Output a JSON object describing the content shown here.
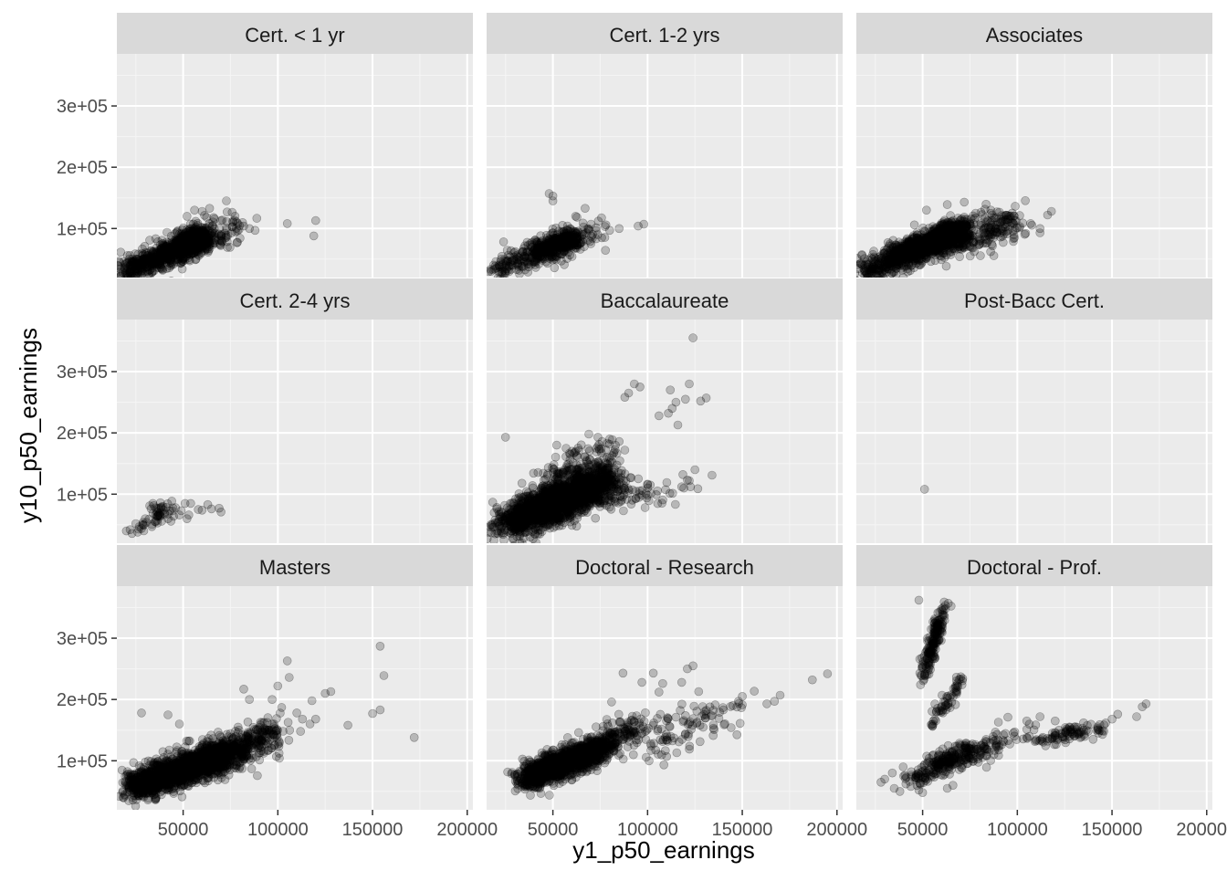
{
  "chart_data": {
    "type": "scatter",
    "facet": "wrap",
    "xlabel": "y1_p50_earnings",
    "ylabel": "y10_p50_earnings",
    "xlim": [
      15000,
      203000
    ],
    "ylim": [
      20000,
      385000
    ],
    "x_ticks": [
      50000,
      100000,
      150000,
      200000
    ],
    "x_tick_labels": [
      "50000",
      "100000",
      "150000",
      "200000"
    ],
    "y_ticks": [
      100000,
      200000,
      300000
    ],
    "y_tick_labels": [
      "1e+05",
      "2e+05",
      "3e+05"
    ],
    "grid": true,
    "point_color": "#000000",
    "point_opacity": 0.22,
    "panels": [
      {
        "name": "Cert. < 1 yr",
        "clusters": [
          {
            "x0": 20000,
            "x1": 60000,
            "y0": 30000,
            "y1": 85000,
            "n": 900,
            "spread": 10000,
            "wx": [
              1,
              1,
              2,
              3
            ]
          },
          {
            "x0": 40000,
            "x1": 80000,
            "y0": 50000,
            "y1": 110000,
            "n": 220,
            "spread": 14000,
            "wx": [
              1,
              2,
              2,
              1
            ]
          }
        ],
        "points": [
          [
            105000,
            108000
          ],
          [
            120000,
            113000
          ],
          [
            119000,
            88000
          ],
          [
            85000,
            100000
          ],
          [
            82000,
            104000
          ],
          [
            88000,
            97000
          ],
          [
            60000,
            128000
          ],
          [
            64000,
            133000
          ],
          [
            56000,
            130000
          ],
          [
            52000,
            120000
          ],
          [
            76000,
            103000
          ],
          [
            70000,
            113000
          ]
        ]
      },
      {
        "name": "Cert. 1-2 yrs",
        "clusters": [
          {
            "x0": 20000,
            "x1": 60000,
            "y0": 33000,
            "y1": 85000,
            "n": 450,
            "spread": 9000,
            "wx": [
              1,
              1,
              2,
              3
            ]
          },
          {
            "x0": 40000,
            "x1": 75000,
            "y0": 50000,
            "y1": 100000,
            "n": 120,
            "spread": 12000,
            "wx": [
              1,
              2,
              2,
              1
            ]
          }
        ],
        "points": [
          [
            98000,
            107000
          ],
          [
            95000,
            104000
          ],
          [
            85000,
            100000
          ],
          [
            80000,
            97000
          ],
          [
            50000,
            145000
          ],
          [
            48000,
            157000
          ],
          [
            50000,
            153000
          ],
          [
            67000,
            133000
          ],
          [
            74000,
            112000
          ],
          [
            62000,
            120000
          ],
          [
            45000,
            66000
          ],
          [
            56000,
            41000
          ],
          [
            78000,
            106000
          ]
        ]
      },
      {
        "name": "Associates",
        "clusters": [
          {
            "x0": 20000,
            "x1": 70000,
            "y0": 30000,
            "y1": 100000,
            "n": 1100,
            "spread": 11000,
            "wx": [
              1,
              2,
              2,
              3
            ]
          },
          {
            "x0": 45000,
            "x1": 100000,
            "y0": 60000,
            "y1": 115000,
            "n": 300,
            "spread": 14000,
            "wx": [
              1,
              2,
              2,
              2
            ]
          }
        ],
        "points": [
          [
            118000,
            128000
          ],
          [
            116000,
            122000
          ],
          [
            107000,
            108000
          ],
          [
            112000,
            100000
          ],
          [
            112000,
            93000
          ],
          [
            101000,
            101000
          ],
          [
            72000,
            143000
          ],
          [
            63000,
            139000
          ],
          [
            52000,
            130000
          ],
          [
            86000,
            130000
          ],
          [
            96000,
            120000
          ],
          [
            78000,
            125000
          ]
        ]
      },
      {
        "name": "Cert. 2-4 yrs",
        "clusters": [
          {
            "x0": 28000,
            "x1": 44000,
            "y0": 50000,
            "y1": 80000,
            "n": 50,
            "spread": 8000,
            "wx": [
              1,
              2,
              2,
              1
            ]
          }
        ],
        "points": [
          [
            20000,
            40000
          ],
          [
            23000,
            36000
          ],
          [
            22000,
            42000
          ],
          [
            26000,
            38000
          ],
          [
            28000,
            44000
          ],
          [
            25000,
            52000
          ],
          [
            30000,
            60000
          ],
          [
            29000,
            50000
          ],
          [
            42000,
            60000
          ],
          [
            45000,
            64000
          ],
          [
            46000,
            78000
          ],
          [
            48000,
            66000
          ],
          [
            49000,
            73000
          ],
          [
            51000,
            85000
          ],
          [
            54000,
            85000
          ],
          [
            58000,
            75000
          ],
          [
            60000,
            74000
          ],
          [
            63000,
            83000
          ],
          [
            65000,
            76000
          ],
          [
            69000,
            77000
          ],
          [
            70000,
            71000
          ],
          [
            53000,
            66000
          ],
          [
            34000,
            85000
          ],
          [
            38000,
            86000
          ],
          [
            52000,
            60000
          ]
        ]
      },
      {
        "name": "Baccalaureate",
        "clusters": [
          {
            "x0": 25000,
            "x1": 80000,
            "y0": 50000,
            "y1": 125000,
            "n": 1700,
            "spread": 14000,
            "wx": [
              2,
              3,
              3,
              2
            ]
          },
          {
            "x0": 40000,
            "x1": 80000,
            "y0": 60000,
            "y1": 170000,
            "n": 350,
            "spread": 22000,
            "wx": [
              1,
              2,
              2,
              1
            ]
          },
          {
            "x0": 75000,
            "x1": 120000,
            "y0": 90000,
            "y1": 115000,
            "n": 80,
            "spread": 12000,
            "wx": [
              3,
              2,
              1,
              1
            ]
          }
        ],
        "points": [
          [
            25000,
            193000
          ],
          [
            124000,
            355000
          ],
          [
            93000,
            280000
          ],
          [
            90000,
            265000
          ],
          [
            88000,
            258000
          ],
          [
            96000,
            275000
          ],
          [
            122000,
            280000
          ],
          [
            112000,
            270000
          ],
          [
            115000,
            250000
          ],
          [
            111000,
            232000
          ],
          [
            120000,
            255000
          ],
          [
            131000,
            257000
          ],
          [
            128000,
            252000
          ],
          [
            106000,
            228000
          ],
          [
            113000,
            240000
          ],
          [
            116000,
            213000
          ],
          [
            125000,
            140000
          ],
          [
            134000,
            131000
          ],
          [
            122000,
            122000
          ],
          [
            118000,
            112000
          ],
          [
            69000,
            198000
          ],
          [
            76000,
            186000
          ],
          [
            80000,
            190000
          ],
          [
            85000,
            186000
          ],
          [
            73000,
            175000
          ],
          [
            88000,
            172000
          ],
          [
            83000,
            180000
          ],
          [
            60000,
            170000
          ],
          [
            52000,
            180000
          ],
          [
            57000,
            175000
          ]
        ]
      },
      {
        "name": "Post-Bacc Cert.",
        "clusters": [],
        "points": [
          [
            51000,
            108000
          ]
        ]
      },
      {
        "name": "Masters",
        "clusters": [
          {
            "x0": 22000,
            "x1": 70000,
            "y0": 55000,
            "y1": 110000,
            "n": 1300,
            "spread": 12000,
            "wx": [
              2,
              3,
              3,
              2
            ]
          },
          {
            "x0": 55000,
            "x1": 100000,
            "y0": 85000,
            "y1": 150000,
            "n": 600,
            "spread": 14000,
            "wx": [
              2,
              3,
              2,
              1
            ]
          }
        ],
        "points": [
          [
            154000,
            287000
          ],
          [
            156000,
            239000
          ],
          [
            150000,
            177000
          ],
          [
            154000,
            183000
          ],
          [
            172000,
            138000
          ],
          [
            137000,
            158000
          ],
          [
            128000,
            213000
          ],
          [
            125000,
            210000
          ],
          [
            105000,
            263000
          ],
          [
            106000,
            236000
          ],
          [
            100000,
            222000
          ],
          [
            102000,
            187000
          ],
          [
            110000,
            178000
          ],
          [
            113000,
            168000
          ],
          [
            117000,
            160000
          ],
          [
            118000,
            198000
          ],
          [
            97000,
            200000
          ],
          [
            82000,
            217000
          ],
          [
            85000,
            200000
          ],
          [
            28000,
            178000
          ],
          [
            42000,
            175000
          ],
          [
            48000,
            160000
          ],
          [
            98000,
            160000
          ],
          [
            112000,
            148000
          ],
          [
            120000,
            168000
          ]
        ]
      },
      {
        "name": "Doctoral - Research",
        "clusters": [
          {
            "x0": 35000,
            "x1": 75000,
            "y0": 70000,
            "y1": 120000,
            "n": 1100,
            "spread": 11000,
            "wx": [
              2,
              3,
              3,
              1
            ]
          },
          {
            "x0": 60000,
            "x1": 95000,
            "y0": 95000,
            "y1": 160000,
            "n": 300,
            "spread": 12000,
            "wx": [
              1,
              2,
              2,
              1
            ]
          },
          {
            "x0": 95000,
            "x1": 150000,
            "y0": 125000,
            "y1": 190000,
            "n": 100,
            "spread": 18000,
            "wx": [
              2,
              2,
              1,
              1
            ]
          }
        ],
        "points": [
          [
            195000,
            242000
          ],
          [
            187000,
            232000
          ],
          [
            170000,
            207000
          ],
          [
            167000,
            197000
          ],
          [
            163000,
            193000
          ],
          [
            150000,
            205000
          ],
          [
            148000,
            197000
          ],
          [
            145000,
            190000
          ],
          [
            140000,
            183000
          ],
          [
            124000,
            255000
          ],
          [
            121000,
            250000
          ],
          [
            108000,
            226000
          ],
          [
            103000,
            243000
          ],
          [
            106000,
            212000
          ],
          [
            97000,
            228000
          ],
          [
            87000,
            243000
          ],
          [
            81000,
            196000
          ],
          [
            118000,
            228000
          ],
          [
            127000,
            213000
          ],
          [
            31000,
            63000
          ],
          [
            34000,
            62000
          ],
          [
            38000,
            58000
          ],
          [
            40000,
            55000
          ],
          [
            110000,
            165000
          ],
          [
            115000,
            171000
          ]
        ]
      },
      {
        "name": "Doctoral - Prof.",
        "clusters": [
          {
            "x0": 50000,
            "x1": 62000,
            "y0": 230000,
            "y1": 360000,
            "n": 180,
            "spread": 4500,
            "wx": [
              1,
              2,
              2,
              1
            ]
          },
          {
            "x0": 55000,
            "x1": 72000,
            "y0": 160000,
            "y1": 240000,
            "n": 60,
            "spread": 5000,
            "wx": [
              1,
              2,
              2,
              1
            ]
          },
          {
            "x0": 42000,
            "x1": 78000,
            "y0": 70000,
            "y1": 120000,
            "n": 250,
            "spread": 9000,
            "wx": [
              1,
              2,
              3,
              2
            ]
          },
          {
            "x0": 105000,
            "x1": 145000,
            "y0": 130000,
            "y1": 155000,
            "n": 90,
            "spread": 6000,
            "wx": [
              1,
              2,
              3,
              2
            ]
          },
          {
            "x0": 75000,
            "x1": 110000,
            "y0": 110000,
            "y1": 160000,
            "n": 70,
            "spread": 9000,
            "wx": [
              2,
              2,
              1,
              1
            ]
          }
        ],
        "points": [
          [
            48000,
            362000
          ],
          [
            168000,
            193000
          ],
          [
            166000,
            188000
          ],
          [
            163000,
            172000
          ],
          [
            153000,
            176000
          ],
          [
            150000,
            168000
          ],
          [
            135000,
            162000
          ],
          [
            120000,
            165000
          ],
          [
            112000,
            172000
          ],
          [
            105000,
            165000
          ],
          [
            95000,
            171000
          ],
          [
            90000,
            163000
          ],
          [
            35000,
            55000
          ],
          [
            38000,
            50000
          ],
          [
            34000,
            80000
          ],
          [
            40000,
            75000
          ],
          [
            48000,
            52000
          ],
          [
            50000,
            48000
          ],
          [
            63000,
            55000
          ],
          [
            66000,
            60000
          ],
          [
            28000,
            65000
          ],
          [
            30000,
            70000
          ],
          [
            145000,
            143000
          ],
          [
            140000,
            135000
          ],
          [
            130000,
            155000
          ],
          [
            128000,
            147000
          ]
        ]
      }
    ]
  }
}
